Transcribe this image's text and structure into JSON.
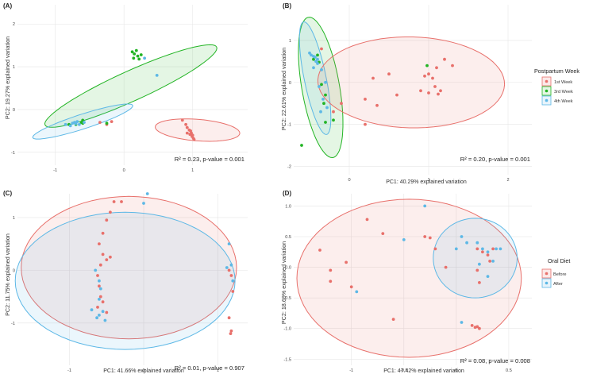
{
  "colors": {
    "week1": "#E8706B",
    "week3": "#22B424",
    "week4": "#5DB8E6",
    "before": "#E8706B",
    "after": "#5DB8E6"
  },
  "legend_top": {
    "title": "Postpartum Week",
    "items": [
      {
        "label": "1st Week",
        "color": "#E8706B"
      },
      {
        "label": "3rd Week",
        "color": "#22B424"
      },
      {
        "label": "4th Week",
        "color": "#5DB8E6"
      }
    ]
  },
  "legend_bottom": {
    "title": "Oral Diet",
    "items": [
      {
        "label": "Before",
        "color": "#E8706B"
      },
      {
        "label": "After",
        "color": "#5DB8E6"
      }
    ]
  },
  "chart_data": [
    {
      "panel": "(A)",
      "type": "scatter",
      "title": "",
      "xlabel": "",
      "ylabel": "PC2: 19.27% explained variation",
      "xlim": [
        -1.55,
        1.8
      ],
      "ylim": [
        -1.3,
        2.45
      ],
      "xticks": [
        {
          "v": -1,
          "label": "-1"
        },
        {
          "v": 0,
          "label": "0"
        },
        {
          "v": 1,
          "label": "1"
        }
      ],
      "yticks": [
        {
          "v": -1,
          "label": "-1"
        },
        {
          "v": 0,
          "label": "0"
        },
        {
          "v": 1,
          "label": "1"
        },
        {
          "v": 2,
          "label": "2"
        }
      ],
      "annotation": "R² = 0.23, p-value = 0.001",
      "ellipses": [
        {
          "group": "3rd Week",
          "color": "#22B424",
          "cx": 0.1,
          "cy": 0.55,
          "rx": 1.55,
          "ry": 0.31,
          "angle": 37
        },
        {
          "group": "4th Week",
          "color": "#5DB8E6",
          "cx": -0.6,
          "cy": -0.28,
          "rx": 0.82,
          "ry": 0.16,
          "angle": 28
        },
        {
          "group": "1st Week",
          "color": "#E8706B",
          "cx": 1.07,
          "cy": -0.48,
          "rx": 0.62,
          "ry": 0.25,
          "angle": -8
        }
      ],
      "series": [
        {
          "name": "1st Week",
          "color": "#E8706B",
          "points": [
            [
              0.85,
              -0.25
            ],
            [
              0.9,
              -0.35
            ],
            [
              0.92,
              -0.42
            ],
            [
              0.95,
              -0.48
            ],
            [
              0.97,
              -0.5
            ],
            [
              0.98,
              -0.55
            ],
            [
              1.0,
              -0.6
            ],
            [
              0.99,
              -0.63
            ],
            [
              1.01,
              -0.67
            ],
            [
              1.02,
              -0.7
            ],
            [
              0.96,
              -0.58
            ],
            [
              0.92,
              -0.55
            ],
            [
              -0.35,
              -0.3
            ],
            [
              -0.25,
              -0.35
            ],
            [
              -0.18,
              -0.28
            ]
          ]
        },
        {
          "name": "3rd Week",
          "color": "#22B424",
          "points": [
            [
              0.12,
              1.35
            ],
            [
              0.15,
              1.3
            ],
            [
              0.18,
              1.38
            ],
            [
              0.2,
              1.25
            ],
            [
              0.25,
              1.28
            ],
            [
              0.14,
              1.2
            ],
            [
              0.22,
              1.18
            ],
            [
              -0.6,
              -0.25
            ],
            [
              -0.62,
              -0.3
            ],
            [
              -0.7,
              -0.35
            ],
            [
              -0.8,
              -0.35
            ],
            [
              -0.6,
              -0.32
            ],
            [
              -0.25,
              -0.32
            ]
          ]
        },
        {
          "name": "4th Week",
          "color": "#5DB8E6",
          "points": [
            [
              0.3,
              1.2
            ],
            [
              0.48,
              0.8
            ],
            [
              -0.7,
              -0.33
            ],
            [
              -0.72,
              -0.3
            ],
            [
              -0.75,
              -0.32
            ],
            [
              -0.68,
              -0.28
            ],
            [
              -0.78,
              -0.38
            ],
            [
              -0.65,
              -0.35
            ],
            [
              -0.85,
              -0.35
            ],
            [
              -0.58,
              -0.3
            ]
          ]
        }
      ]
    },
    {
      "panel": "(B)",
      "type": "scatter",
      "title": "",
      "xlabel": "PC1: 40.29% explained variation",
      "ylabel": "PC2: 22.61% explained variation",
      "xlim": [
        -0.7,
        2.3
      ],
      "ylim": [
        -2.2,
        1.85
      ],
      "xticks": [
        {
          "v": 0,
          "label": "0"
        },
        {
          "v": 1,
          "label": "1"
        },
        {
          "v": 2,
          "label": "2"
        }
      ],
      "yticks": [
        {
          "v": -2,
          "label": "-2"
        },
        {
          "v": -1,
          "label": "-1"
        },
        {
          "v": 0,
          "label": "0"
        },
        {
          "v": 1,
          "label": "1"
        }
      ],
      "annotation": "R² = 0.20, p-value = 0.001",
      "ellipses": [
        {
          "group": "3rd Week",
          "color": "#22B424",
          "cx": -0.36,
          "cy": -0.12,
          "rx": 1.68,
          "ry": 0.24,
          "angle": -85
        },
        {
          "group": "4th Week",
          "color": "#5DB8E6",
          "cx": -0.43,
          "cy": 0.1,
          "rx": 1.35,
          "ry": 0.14,
          "angle": -84
        },
        {
          "group": "1st Week",
          "color": "#E8706B",
          "cx": 0.78,
          "cy": 0.0,
          "rx": 1.18,
          "ry": 1.08,
          "angle": -12
        }
      ],
      "series": [
        {
          "name": "1st Week",
          "color": "#E8706B",
          "points": [
            [
              1.2,
              0.55
            ],
            [
              1.3,
              0.4
            ],
            [
              1.1,
              0.35
            ],
            [
              1.0,
              0.2
            ],
            [
              0.95,
              0.15
            ],
            [
              1.05,
              0.1
            ],
            [
              1.08,
              -0.1
            ],
            [
              0.5,
              0.2
            ],
            [
              0.3,
              0.1
            ],
            [
              0.2,
              -0.4
            ],
            [
              0.35,
              -0.55
            ],
            [
              0.2,
              -1.0
            ],
            [
              0.9,
              -0.2
            ],
            [
              1.0,
              -0.25
            ],
            [
              1.12,
              -0.28
            ],
            [
              1.15,
              -0.2
            ],
            [
              -0.35,
              0.8
            ],
            [
              -0.2,
              -0.7
            ],
            [
              -0.1,
              -0.5
            ],
            [
              0.6,
              -0.3
            ]
          ]
        },
        {
          "name": "3rd Week",
          "color": "#22B424",
          "points": [
            [
              -0.6,
              -1.5
            ],
            [
              -0.4,
              0.65
            ],
            [
              -0.45,
              0.55
            ],
            [
              -0.38,
              0.48
            ],
            [
              -0.3,
              -0.3
            ],
            [
              -0.32,
              -0.5
            ],
            [
              -0.2,
              -0.9
            ],
            [
              -0.3,
              -0.95
            ],
            [
              -0.35,
              -0.05
            ],
            [
              0.98,
              0.4
            ]
          ]
        },
        {
          "name": "4th Week",
          "color": "#5DB8E6",
          "points": [
            [
              -0.5,
              0.7
            ],
            [
              -0.48,
              0.65
            ],
            [
              -0.45,
              0.62
            ],
            [
              -0.43,
              0.6
            ],
            [
              -0.4,
              0.55
            ],
            [
              -0.42,
              0.5
            ],
            [
              -0.4,
              0.45
            ],
            [
              -0.35,
              0.3
            ],
            [
              -0.45,
              0.35
            ],
            [
              -0.3,
              0.0
            ],
            [
              -0.38,
              -0.1
            ],
            [
              -0.33,
              -0.4
            ],
            [
              -0.28,
              -0.6
            ],
            [
              -0.36,
              -0.7
            ]
          ]
        }
      ]
    },
    {
      "panel": "(C)",
      "type": "scatter",
      "title": "",
      "xlabel": "PC1: 41.66% explained variation",
      "ylabel": "PC2: 11.75% explained variation",
      "xlim": [
        -1.7,
        1.4
      ],
      "ylim": [
        -1.8,
        1.45
      ],
      "xticks": [
        {
          "v": -1,
          "label": "-1"
        },
        {
          "v": 0,
          "label": "0"
        },
        {
          "v": 1,
          "label": "1"
        }
      ],
      "yticks": [
        {
          "v": -1,
          "label": "-1"
        },
        {
          "v": 0,
          "label": "0"
        },
        {
          "v": 1,
          "label": "1"
        }
      ],
      "annotation": "R² = 0.01, p-value = 0.907",
      "ellipses": [
        {
          "group": "Before",
          "color": "#E8706B",
          "cx": -0.2,
          "cy": 0.05,
          "rx": 1.45,
          "ry": 1.35,
          "angle": 0
        },
        {
          "group": "After",
          "color": "#5DB8E6",
          "cx": -0.25,
          "cy": -0.2,
          "rx": 1.48,
          "ry": 1.3,
          "angle": 0
        }
      ],
      "series": [
        {
          "name": "Before",
          "color": "#E8706B",
          "points": [
            [
              -0.4,
              1.3
            ],
            [
              -0.3,
              1.3
            ],
            [
              -0.45,
              1.1
            ],
            [
              -0.5,
              0.95
            ],
            [
              -0.55,
              0.7
            ],
            [
              -0.6,
              0.5
            ],
            [
              -0.55,
              0.3
            ],
            [
              -0.58,
              0.1
            ],
            [
              -0.62,
              -0.1
            ],
            [
              -0.6,
              -0.3
            ],
            [
              -0.58,
              -0.5
            ],
            [
              -0.62,
              -0.7
            ],
            [
              -0.5,
              -0.8
            ],
            [
              -0.55,
              -0.6
            ],
            [
              -0.45,
              0.25
            ],
            [
              -0.5,
              0.2
            ],
            [
              1.15,
              0.0
            ],
            [
              1.18,
              -0.1
            ],
            [
              1.2,
              -0.4
            ],
            [
              1.17,
              -1.2
            ],
            [
              1.15,
              -0.9
            ],
            [
              1.18,
              -1.15
            ]
          ]
        },
        {
          "name": "After",
          "color": "#5DB8E6",
          "points": [
            [
              0.05,
              1.45
            ],
            [
              0.0,
              1.27
            ],
            [
              -0.63,
              -0.9
            ],
            [
              -0.6,
              -0.2
            ],
            [
              -0.65,
              0.0
            ],
            [
              -0.58,
              -0.35
            ],
            [
              -0.6,
              -0.55
            ],
            [
              -0.55,
              -0.78
            ],
            [
              -0.52,
              -0.95
            ],
            [
              -0.6,
              -0.85
            ],
            [
              -0.7,
              -0.75
            ],
            [
              1.15,
              0.5
            ],
            [
              1.18,
              0.1
            ],
            [
              1.12,
              0.05
            ],
            [
              1.2,
              -0.2
            ]
          ]
        }
      ]
    },
    {
      "panel": "(D)",
      "type": "scatter",
      "title": "",
      "xlabel": "PC1: 47.42% explained variation",
      "ylabel": "PC2: 18.69% explained variation",
      "xlim": [
        -1.55,
        0.72
      ],
      "ylim": [
        -1.6,
        1.2
      ],
      "xticks": [
        {
          "v": -1,
          "label": "-1"
        },
        {
          "v": -0.5,
          "label": "-0.5"
        },
        {
          "v": 0,
          "label": "0"
        },
        {
          "v": 0.5,
          "label": "0.5"
        }
      ],
      "yticks": [
        {
          "v": -1.5,
          "label": "-1.5"
        },
        {
          "v": -1,
          "label": "-1.0"
        },
        {
          "v": -0.5,
          "label": "-0.5"
        },
        {
          "v": 0,
          "label": "0.0"
        },
        {
          "v": 0.5,
          "label": "0.5"
        },
        {
          "v": 1,
          "label": "1.0"
        }
      ],
      "annotation": "R² = 0.08, p-value = 0.008",
      "ellipses": [
        {
          "group": "Before",
          "color": "#E8706B",
          "cx": -0.45,
          "cy": -0.18,
          "rx": 1.07,
          "ry": 1.29,
          "angle": 0
        },
        {
          "group": "After",
          "color": "#5DB8E6",
          "cx": 0.18,
          "cy": 0.15,
          "rx": 0.4,
          "ry": 0.65,
          "angle": 0
        }
      ],
      "series": [
        {
          "name": "Before",
          "color": "#E8706B",
          "points": [
            [
              -1.3,
              0.28
            ],
            [
              -1.2,
              -0.05
            ],
            [
              -1.2,
              -0.23
            ],
            [
              -1.05,
              0.08
            ],
            [
              -1.0,
              -0.32
            ],
            [
              -0.85,
              0.78
            ],
            [
              -0.7,
              0.55
            ],
            [
              -0.6,
              -0.85
            ],
            [
              -0.3,
              0.5
            ],
            [
              -0.25,
              0.48
            ],
            [
              -0.2,
              0.3
            ],
            [
              -0.1,
              0.0
            ],
            [
              0.2,
              0.3
            ],
            [
              0.25,
              0.25
            ],
            [
              0.3,
              0.2
            ],
            [
              0.32,
              0.1
            ],
            [
              0.35,
              0.3
            ],
            [
              0.2,
              -0.05
            ],
            [
              0.22,
              -0.25
            ],
            [
              0.18,
              -0.98
            ],
            [
              0.2,
              -0.97
            ],
            [
              0.22,
              -1.0
            ],
            [
              0.15,
              -0.95
            ]
          ]
        },
        {
          "name": "After",
          "color": "#5DB8E6",
          "points": [
            [
              -0.95,
              -0.4
            ],
            [
              -0.3,
              1.0
            ],
            [
              0.05,
              -0.9
            ],
            [
              0.05,
              0.5
            ],
            [
              0.1,
              0.4
            ],
            [
              0.2,
              0.4
            ],
            [
              0.25,
              0.3
            ],
            [
              0.3,
              0.25
            ],
            [
              0.35,
              0.1
            ],
            [
              0.38,
              0.3
            ],
            [
              0.42,
              0.3
            ],
            [
              0.3,
              -0.15
            ],
            [
              -0.5,
              0.45
            ],
            [
              0.0,
              0.3
            ],
            [
              0.22,
              0.05
            ]
          ]
        }
      ]
    }
  ]
}
